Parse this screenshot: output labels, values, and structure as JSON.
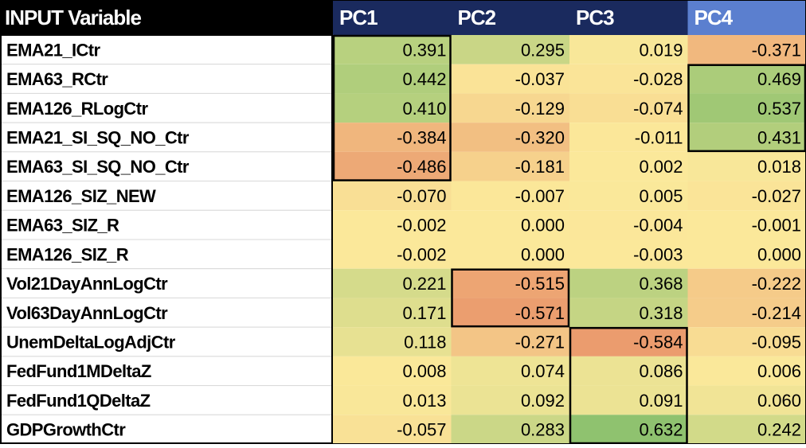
{
  "chart_data": {
    "type": "heatmap",
    "title": "",
    "corner_label": "INPUT Variable",
    "columns": [
      "PC1",
      "PC2",
      "PC3",
      "PC4"
    ],
    "rows": [
      {
        "name": "EMA21_ICtr",
        "values": [
          0.391,
          0.295,
          0.019,
          -0.371
        ]
      },
      {
        "name": "EMA63_RCtr",
        "values": [
          0.442,
          -0.037,
          -0.028,
          0.469
        ]
      },
      {
        "name": "EMA126_RLogCtr",
        "values": [
          0.41,
          -0.129,
          -0.074,
          0.537
        ]
      },
      {
        "name": "EMA21_SI_SQ_NO_Ctr",
        "values": [
          -0.384,
          -0.32,
          -0.011,
          0.431
        ]
      },
      {
        "name": "EMA63_SI_SQ_NO_Ctr",
        "values": [
          -0.486,
          -0.181,
          0.002,
          0.018
        ]
      },
      {
        "name": "EMA126_SIZ_NEW",
        "values": [
          -0.07,
          -0.007,
          0.005,
          -0.027
        ]
      },
      {
        "name": "EMA63_SIZ_R",
        "values": [
          -0.002,
          0.0,
          -0.004,
          -0.001
        ]
      },
      {
        "name": "EMA126_SIZ_R",
        "values": [
          -0.002,
          0.0,
          -0.003,
          0.0
        ]
      },
      {
        "name": "Vol21DayAnnLogCtr",
        "values": [
          0.221,
          -0.515,
          0.368,
          -0.222
        ]
      },
      {
        "name": "Vol63DayAnnLogCtr",
        "values": [
          0.171,
          -0.571,
          0.318,
          -0.214
        ]
      },
      {
        "name": "UnemDeltaLogAdjCtr",
        "values": [
          0.118,
          -0.271,
          -0.584,
          -0.095
        ]
      },
      {
        "name": "FedFund1MDeltaZ",
        "values": [
          0.008,
          0.074,
          0.086,
          0.006
        ]
      },
      {
        "name": "FedFund1QDeltaZ",
        "values": [
          0.013,
          0.092,
          0.091,
          0.06
        ]
      },
      {
        "name": "GDPGrowthCtr",
        "values": [
          -0.057,
          0.283,
          0.632,
          0.242
        ]
      }
    ],
    "highlight_blocks": [
      {
        "column": "PC1",
        "from_row": "EMA21_ICtr",
        "to_row": "EMA63_SI_SQ_NO_Ctr"
      },
      {
        "column": "PC2",
        "from_row": "Vol21DayAnnLogCtr",
        "to_row": "Vol63DayAnnLogCtr"
      },
      {
        "column": "PC3",
        "from_row": "UnemDeltaLogAdjCtr",
        "to_row": "GDPGrowthCtr"
      },
      {
        "column": "PC4",
        "from_row": "EMA63_RCtr",
        "to_row": "EMA21_SI_SQ_NO_Ctr"
      }
    ],
    "colors": {
      "header_bg": "#000000",
      "header_pc_bg": "#1a2a5e",
      "header_pc4_bg": "#5b7fcf",
      "header_text": "#ffffff",
      "row_label_text": "#000000",
      "row_label_bg": "#ffffff",
      "scale_negative": "#e9956a",
      "scale_neutral": "#fbe89a",
      "scale_positive": "#8ec26e"
    }
  }
}
